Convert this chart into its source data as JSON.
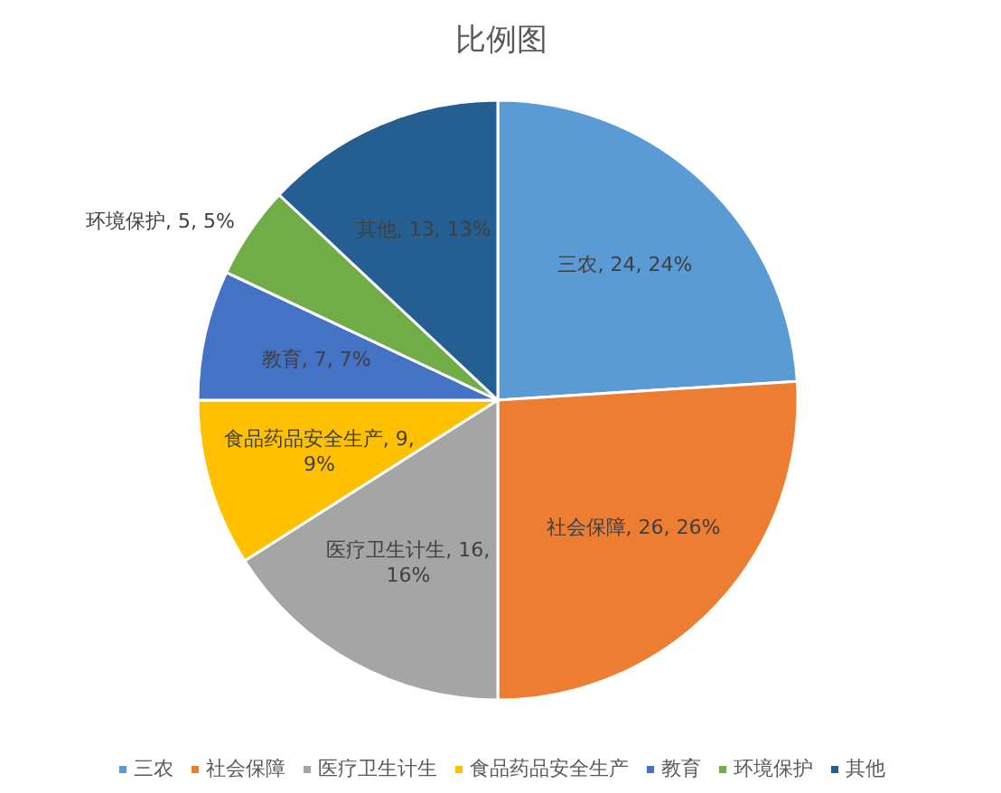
{
  "chart_data": {
    "type": "pie",
    "title": "比例图",
    "categories": [
      "三农",
      "社会保障",
      "医疗卫生计生",
      "食品药品安全生产",
      "教育",
      "环境保护",
      "其他"
    ],
    "values": [
      24,
      26,
      16,
      9,
      7,
      5,
      13
    ],
    "colors": [
      "#5b9bd5",
      "#ed7d31",
      "#a5a5a5",
      "#ffc000",
      "#4472c4",
      "#70ad47",
      "#255e91"
    ],
    "value_labels": [
      "三农, 24, 24%",
      "社会保障, 26, 26%",
      "医疗卫生计生, 16, 16%",
      "食品药品安全生产, 9, 9%",
      "教育, 7, 7%",
      "环境保护, 5, 5%",
      "其他, 13, 13%"
    ],
    "legend": "bottom"
  }
}
